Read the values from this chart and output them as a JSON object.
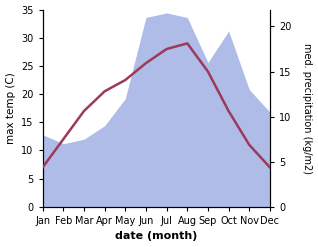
{
  "months": [
    "Jan",
    "Feb",
    "Mar",
    "Apr",
    "May",
    "Jun",
    "Jul",
    "Aug",
    "Sep",
    "Oct",
    "Nov",
    "Dec"
  ],
  "month_x": [
    0,
    1,
    2,
    3,
    4,
    5,
    6,
    7,
    8,
    9,
    10,
    11
  ],
  "temp": [
    7.0,
    12.0,
    17.0,
    20.5,
    22.5,
    25.5,
    28.0,
    29.0,
    24.0,
    17.0,
    11.0,
    7.0
  ],
  "precip": [
    8.0,
    7.0,
    7.5,
    9.0,
    12.0,
    21.0,
    21.5,
    21.0,
    16.0,
    19.5,
    13.0,
    10.5
  ],
  "temp_color": "#9B3A5A",
  "precip_fill_color": "#b0bce8",
  "temp_ylim": [
    0,
    35
  ],
  "precip_ylim": [
    0,
    21.875
  ],
  "temp_yticks": [
    0,
    5,
    10,
    15,
    20,
    25,
    30,
    35
  ],
  "precip_yticks": [
    0,
    5,
    10,
    15,
    20
  ],
  "xlabel": "date (month)",
  "ylabel_left": "max temp (C)",
  "ylabel_right": "med. precipitation (kg/m2)",
  "bg_color": "#ffffff",
  "line_width": 1.8,
  "figsize": [
    3.18,
    2.47
  ],
  "dpi": 100
}
